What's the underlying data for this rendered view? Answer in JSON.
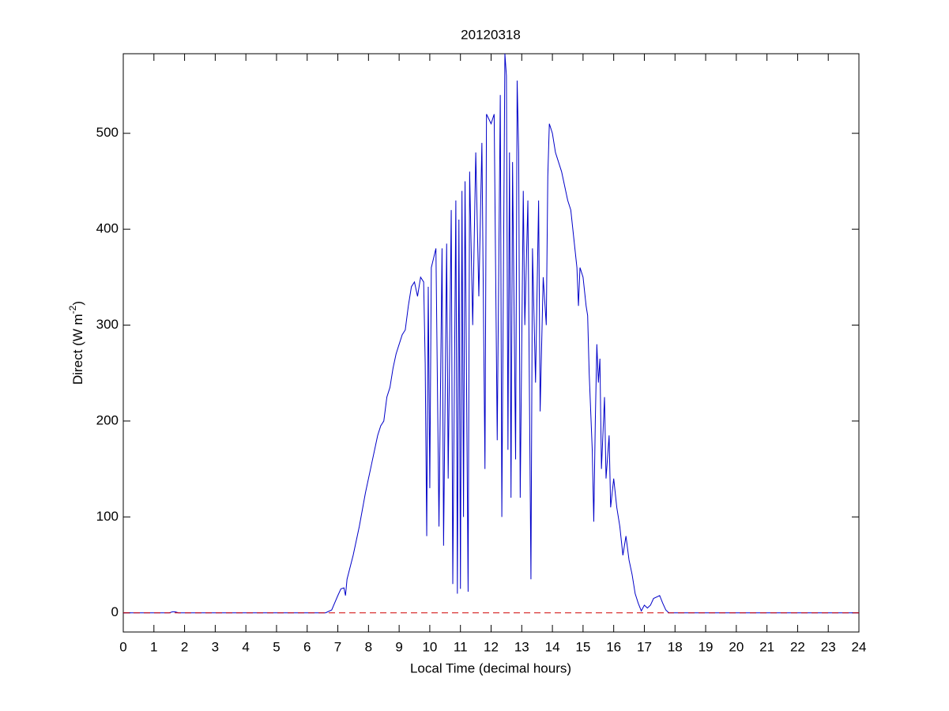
{
  "chart_data": {
    "type": "line",
    "title": "20120318",
    "xlabel": "Local Time (decimal hours)",
    "ylabel": [
      "Direct (W m",
      "-2",
      ")"
    ],
    "x": [
      0,
      1.5,
      1.6,
      1.7,
      1.8,
      6.6,
      6.8,
      7.0,
      7.1,
      7.2,
      7.25,
      7.3,
      7.5,
      7.7,
      7.9,
      8.1,
      8.3,
      8.4,
      8.5,
      8.6,
      8.7,
      8.8,
      8.9,
      9.0,
      9.1,
      9.2,
      9.3,
      9.4,
      9.5,
      9.6,
      9.7,
      9.8,
      9.85,
      9.9,
      9.95,
      10.0,
      10.05,
      10.2,
      10.3,
      10.4,
      10.45,
      10.55,
      10.6,
      10.7,
      10.75,
      10.85,
      10.9,
      10.95,
      11.0,
      11.05,
      11.1,
      11.15,
      11.25,
      11.3,
      11.4,
      11.5,
      11.6,
      11.7,
      11.8,
      11.85,
      12.0,
      12.1,
      12.2,
      12.3,
      12.35,
      12.45,
      12.5,
      12.55,
      12.6,
      12.65,
      12.7,
      12.8,
      12.85,
      12.9,
      12.95,
      13.05,
      13.1,
      13.2,
      13.3,
      13.35,
      13.45,
      13.55,
      13.6,
      13.7,
      13.8,
      13.85,
      13.9,
      14.0,
      14.1,
      14.3,
      14.5,
      14.6,
      14.7,
      14.8,
      14.85,
      14.9,
      15.0,
      15.1,
      15.15,
      15.2,
      15.3,
      15.35,
      15.4,
      15.45,
      15.5,
      15.55,
      15.6,
      15.7,
      15.75,
      15.85,
      15.9,
      16.0,
      16.1,
      16.2,
      16.3,
      16.4,
      16.5,
      16.6,
      16.7,
      16.8,
      16.9,
      17.0,
      17.1,
      17.2,
      17.3,
      17.5,
      17.6,
      17.7,
      17.8,
      24
    ],
    "series": [
      {
        "color": "#0000c8",
        "values": [
          0,
          0,
          1,
          1,
          0,
          0,
          3,
          18,
          25,
          26,
          18,
          35,
          60,
          90,
          125,
          155,
          185,
          195,
          200,
          225,
          235,
          255,
          270,
          280,
          290,
          295,
          320,
          340,
          345,
          330,
          350,
          345,
          260,
          80,
          340,
          130,
          360,
          380,
          90,
          380,
          70,
          385,
          140,
          420,
          30,
          430,
          20,
          410,
          25,
          440,
          100,
          450,
          22,
          460,
          300,
          480,
          330,
          490,
          150,
          520,
          510,
          520,
          180,
          540,
          100,
          583,
          560,
          170,
          480,
          120,
          470,
          160,
          555,
          480,
          120,
          440,
          300,
          430,
          35,
          380,
          240,
          430,
          210,
          350,
          300,
          455,
          510,
          500,
          480,
          460,
          430,
          420,
          390,
          360,
          320,
          360,
          350,
          320,
          310,
          250,
          170,
          95,
          200,
          280,
          240,
          265,
          150,
          225,
          140,
          185,
          110,
          140,
          110,
          90,
          60,
          80,
          55,
          40,
          20,
          10,
          2,
          8,
          5,
          8,
          15,
          18,
          10,
          3,
          0,
          0
        ]
      }
    ],
    "reference_line": {
      "value": 0,
      "color": "#d00000",
      "dash": true
    },
    "xlim": [
      0,
      24
    ],
    "xticks": [
      0,
      1,
      2,
      3,
      4,
      5,
      6,
      7,
      8,
      9,
      10,
      11,
      12,
      13,
      14,
      15,
      16,
      17,
      18,
      19,
      20,
      21,
      22,
      23,
      24
    ],
    "ylim": [
      -20,
      583
    ],
    "yticks": [
      0,
      100,
      200,
      300,
      400,
      500
    ],
    "grid": false
  }
}
